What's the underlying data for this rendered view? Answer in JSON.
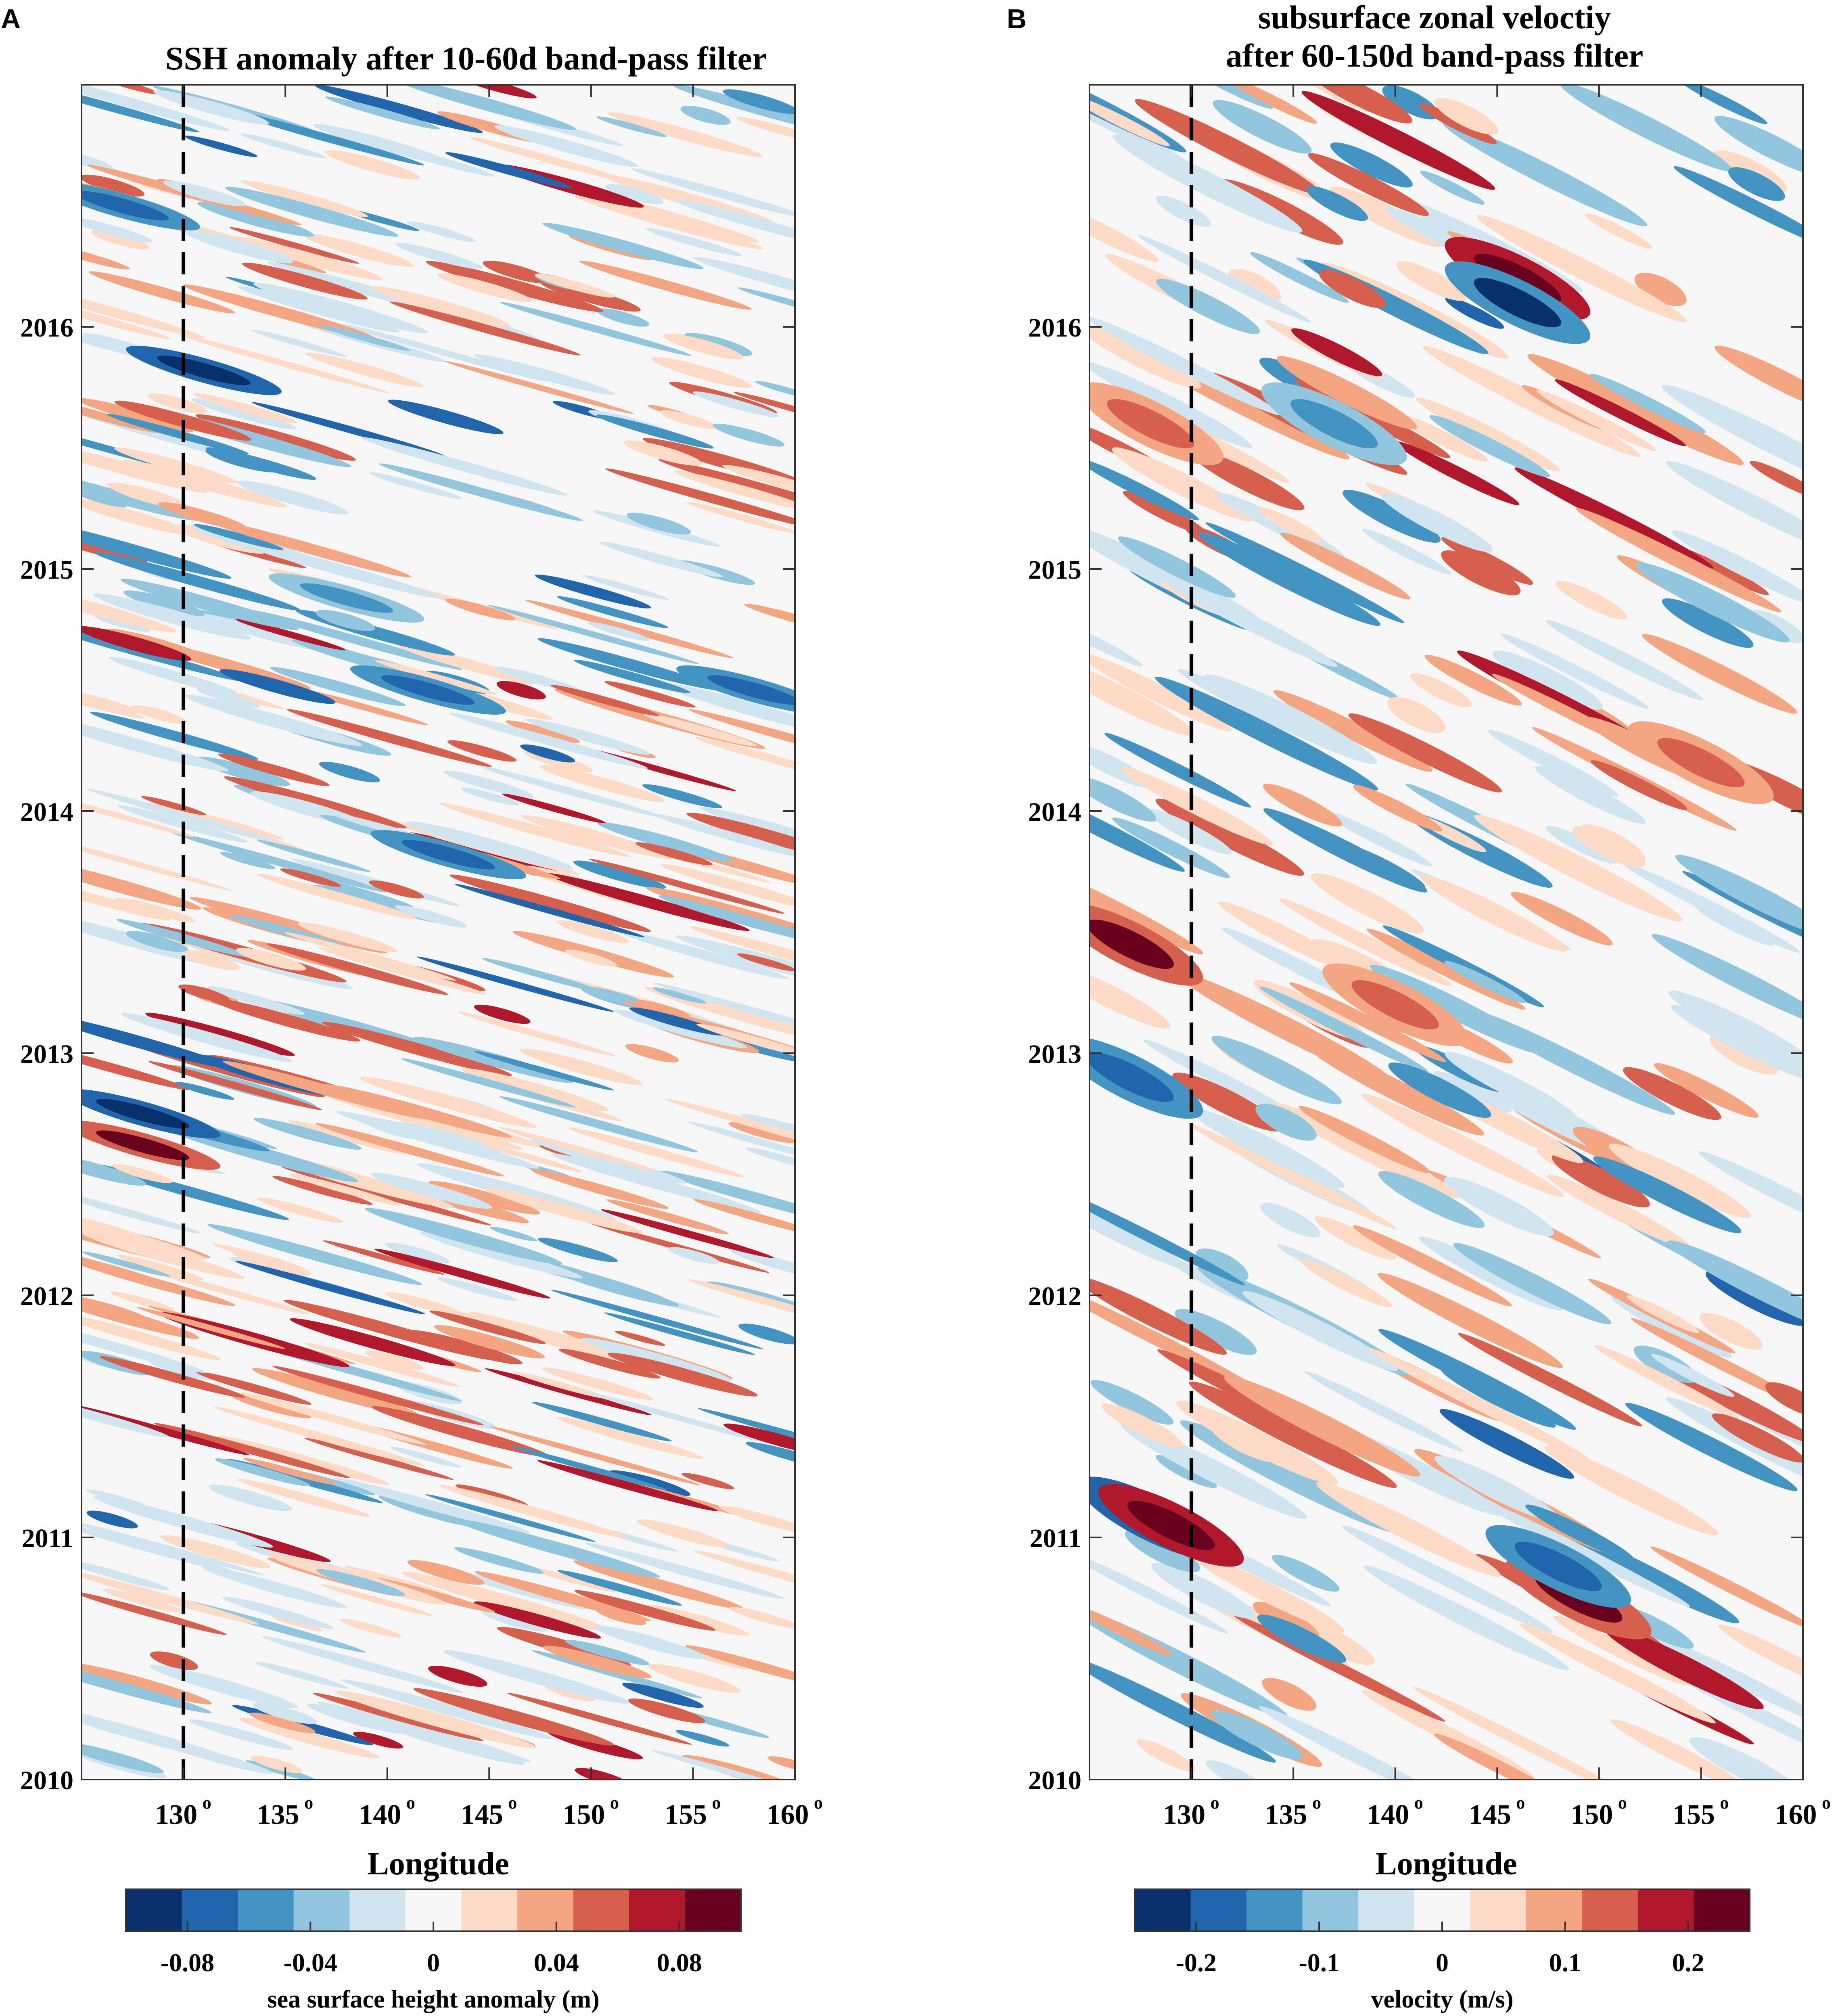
{
  "panel_labels": [
    "A",
    "B"
  ],
  "colormap": [
    "#08306b",
    "#2166ac",
    "#4393c3",
    "#92c5de",
    "#d1e5f0",
    "#f7f7f7",
    "#fddbc7",
    "#f4a582",
    "#d6604d",
    "#b2182b",
    "#67001f"
  ],
  "chart_data": [
    {
      "type": "heatmap",
      "panel": "A",
      "title_lines": [
        "SSH anomaly after 10-60d band-pass filter"
      ],
      "xlabel": "Longitude",
      "ylabel": "",
      "xlim": [
        125,
        160
      ],
      "ylim": [
        2010,
        2017.0
      ],
      "x_ticks": [
        130,
        135,
        140,
        145,
        150,
        155,
        160
      ],
      "x_tick_labels": [
        "130",
        "135",
        "140",
        "145",
        "150",
        "155",
        "160"
      ],
      "x_tick_suffix": "o",
      "y_ticks": [
        2010,
        2011,
        2012,
        2013,
        2014,
        2015,
        2016
      ],
      "y_tick_labels": [
        "2010",
        "2011",
        "2012",
        "2013",
        "2014",
        "2015",
        "2016"
      ],
      "reference_line": {
        "x": 130,
        "style": "dashed"
      },
      "colorbar": {
        "label": "sea surface height anomaly (m)",
        "range": [
          -0.1,
          0.1
        ],
        "ticks": [
          -0.08,
          -0.04,
          0,
          0.04,
          0.08
        ],
        "tick_labels": [
          "-0.08",
          "-0.04",
          "0",
          "0.04",
          "0.08"
        ]
      },
      "features": [
        {
          "lon": 131,
          "year": 2015.82,
          "value": -0.1
        },
        {
          "lon": 128,
          "year": 2012.75,
          "value": -0.1
        },
        {
          "lon": 128,
          "year": 2012.62,
          "value": 0.09
        },
        {
          "lon": 142,
          "year": 2014.5,
          "value": -0.07
        },
        {
          "lon": 138,
          "year": 2014.88,
          "value": -0.06
        },
        {
          "lon": 143,
          "year": 2013.82,
          "value": -0.07
        },
        {
          "lon": 127,
          "year": 2016.5,
          "value": -0.08
        },
        {
          "lon": 158,
          "year": 2014.5,
          "value": -0.07
        }
      ]
    },
    {
      "type": "heatmap",
      "panel": "B",
      "title_lines": [
        "subsurface zonal veloctiy",
        "after 60-150d band-pass filter"
      ],
      "xlabel": "Longitude",
      "ylabel": "",
      "xlim": [
        125,
        160
      ],
      "ylim": [
        2010,
        2017.0
      ],
      "x_ticks": [
        130,
        135,
        140,
        145,
        150,
        155,
        160
      ],
      "x_tick_labels": [
        "130",
        "135",
        "140",
        "145",
        "150",
        "155",
        "160"
      ],
      "x_tick_suffix": "o",
      "y_ticks": [
        2010,
        2011,
        2012,
        2013,
        2014,
        2015,
        2016
      ],
      "y_tick_labels": [
        "2010",
        "2011",
        "2012",
        "2013",
        "2014",
        "2015",
        "2016"
      ],
      "reference_line": {
        "x": 130,
        "style": "dashed"
      },
      "colorbar": {
        "label": "velocity (m/s)",
        "range": [
          -0.25,
          0.25
        ],
        "ticks": [
          -0.2,
          -0.1,
          0,
          0.1,
          0.2
        ],
        "tick_labels": [
          "-0.2",
          "-0.1",
          "0",
          "0.1",
          "0.2"
        ]
      },
      "features": [
        {
          "lon": 128,
          "year": 2011.08,
          "value": -0.25
        },
        {
          "lon": 129,
          "year": 2011.05,
          "value": 0.25
        },
        {
          "lon": 149,
          "year": 2010.75,
          "value": 0.22
        },
        {
          "lon": 148,
          "year": 2010.88,
          "value": -0.2
        },
        {
          "lon": 146,
          "year": 2016.2,
          "value": 0.25
        },
        {
          "lon": 146,
          "year": 2016.1,
          "value": -0.22
        },
        {
          "lon": 127,
          "year": 2013.45,
          "value": 0.22
        },
        {
          "lon": 127,
          "year": 2012.9,
          "value": -0.2
        },
        {
          "lon": 140,
          "year": 2013.2,
          "value": 0.15
        },
        {
          "lon": 128,
          "year": 2015.6,
          "value": 0.15
        },
        {
          "lon": 137,
          "year": 2015.6,
          "value": -0.15
        },
        {
          "lon": 155,
          "year": 2014.2,
          "value": 0.12
        }
      ]
    }
  ]
}
